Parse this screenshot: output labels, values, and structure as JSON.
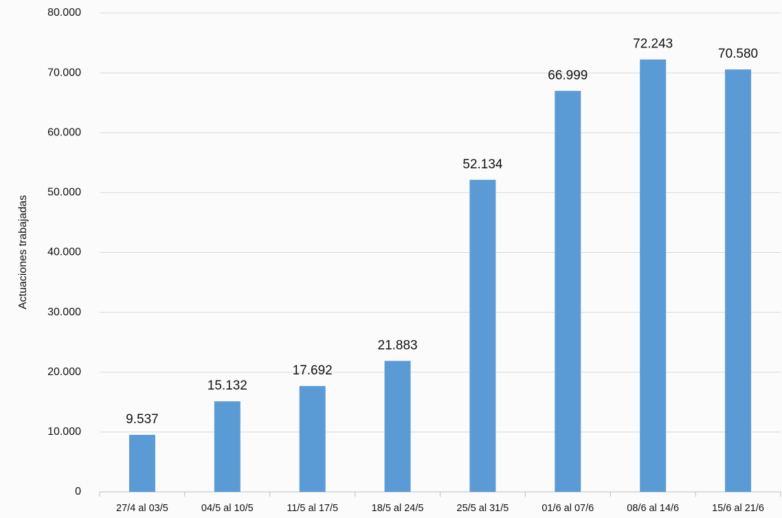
{
  "chart_data": {
    "type": "bar",
    "y_label": "Actuaciones trabajadas",
    "categories": [
      "27/4 al 03/5",
      "04/5 al 10/5",
      "11/5 al 17/5",
      "18/5 al 24/5",
      "25/5 al 31/5",
      "01/6 al 07/6",
      "08/6 al 14/6",
      "15/6 al 21/6"
    ],
    "values": [
      9537,
      15132,
      17692,
      21883,
      52134,
      66999,
      72243,
      70580
    ],
    "value_labels": [
      "9.537",
      "15.132",
      "17.692",
      "21.883",
      "52.134",
      "66.999",
      "72.243",
      "70.580"
    ],
    "color": "#5b9bd5",
    "ylim": [
      0,
      80000
    ],
    "yticks": [
      0,
      {
        "value": 10000,
        "label": "10.000"
      },
      {
        "value": 20000,
        "label": "20.000"
      },
      {
        "value": 30000,
        "label": "30.000"
      },
      {
        "value": 40000,
        "label": "40.000"
      },
      {
        "value": 50000,
        "label": "50.000"
      },
      {
        "value": 60000,
        "label": "60.000"
      },
      {
        "value": 70000,
        "label": "70.000"
      },
      {
        "value": 80000,
        "label": "80.000"
      }
    ],
    "grid": true
  }
}
